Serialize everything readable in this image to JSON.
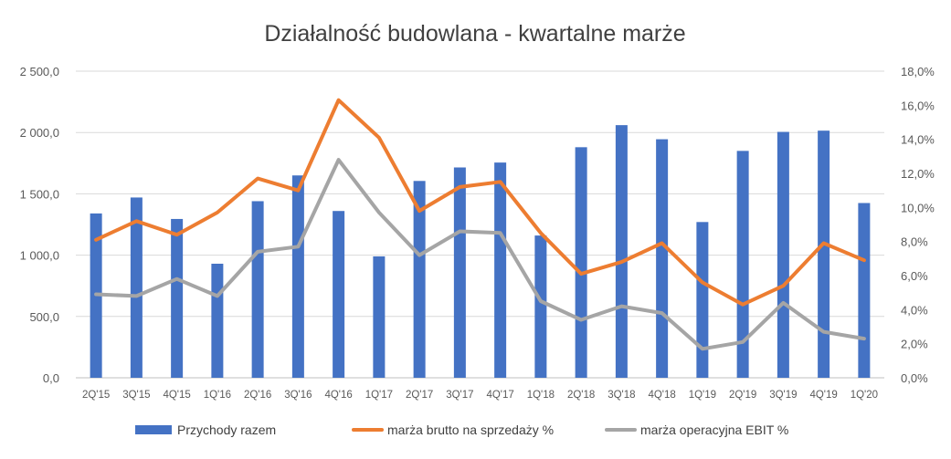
{
  "chart_data": {
    "type": "bar",
    "title": "Działalność budowlana - kwartalne marże",
    "categories": [
      "2Q'15",
      "3Q'15",
      "4Q'15",
      "1Q'16",
      "2Q'16",
      "3Q'16",
      "4Q'16",
      "1Q'17",
      "2Q'17",
      "3Q'17",
      "4Q'17",
      "1Q'18",
      "2Q'18",
      "3Q'18",
      "4Q'18",
      "1Q'19",
      "2Q'19",
      "3Q'19",
      "4Q'19",
      "1Q'20"
    ],
    "y_left": {
      "range": [
        0,
        2500
      ],
      "ticks": [
        0,
        500,
        1000,
        1500,
        2000,
        2500
      ],
      "tick_labels": [
        "0,0",
        "500,0",
        "1 000,0",
        "1 500,0",
        "2 000,0",
        "2 500,0"
      ]
    },
    "y_right": {
      "range": [
        0,
        18
      ],
      "ticks": [
        0,
        2,
        4,
        6,
        8,
        10,
        12,
        14,
        16,
        18
      ],
      "tick_labels": [
        "0,0%",
        "2,0%",
        "4,0%",
        "6,0%",
        "8,0%",
        "10,0%",
        "12,0%",
        "14,0%",
        "16,0%",
        "18,0%"
      ]
    },
    "grid": true,
    "legend_position": "bottom",
    "series": [
      {
        "name": "Przychody razem",
        "type": "bar",
        "axis": "left",
        "color": "#4472C4",
        "values": [
          1340,
          1470,
          1295,
          930,
          1440,
          1650,
          1360,
          990,
          1605,
          1715,
          1755,
          1160,
          1880,
          2060,
          1945,
          1270,
          1850,
          2005,
          2015,
          1425
        ]
      },
      {
        "name": "marża brutto na sprzedaży %",
        "type": "line",
        "axis": "right",
        "color": "#ED7D31",
        "values": [
          8.1,
          9.2,
          8.4,
          9.7,
          11.7,
          11.0,
          16.3,
          14.1,
          9.8,
          11.2,
          11.5,
          8.5,
          6.1,
          6.8,
          7.9,
          5.6,
          4.3,
          5.4,
          7.9,
          6.9
        ]
      },
      {
        "name": "marża operacyjna EBIT %",
        "type": "line",
        "axis": "right",
        "color": "#A5A5A5",
        "values": [
          4.9,
          4.8,
          5.8,
          4.8,
          7.4,
          7.7,
          12.8,
          9.7,
          7.2,
          8.6,
          8.5,
          4.5,
          3.4,
          4.2,
          3.8,
          1.7,
          2.1,
          4.4,
          2.7,
          2.3
        ]
      }
    ]
  }
}
